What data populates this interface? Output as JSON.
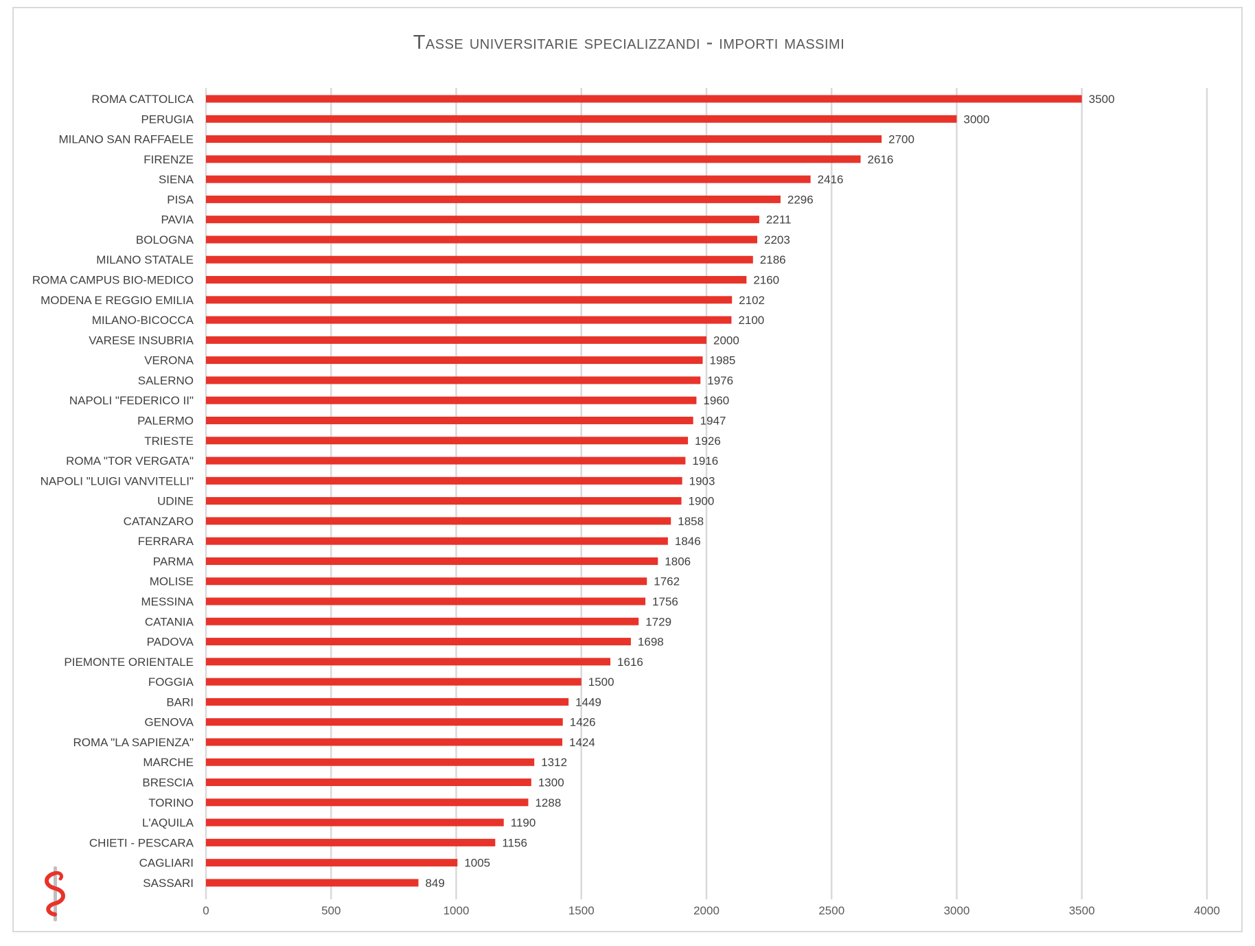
{
  "chart_data": {
    "type": "bar",
    "orientation": "horizontal",
    "title": "Tasse universitarie specializzandi - importi massimi",
    "xlabel": "",
    "ylabel": "",
    "xlim": [
      0,
      4000
    ],
    "x_ticks": [
      0,
      500,
      1000,
      1500,
      2000,
      2500,
      3000,
      3500,
      4000
    ],
    "grid": "vertical",
    "legend": "none",
    "bar_color": "#e8332a",
    "categories": [
      "ROMA CATTOLICA",
      "PERUGIA",
      "MILANO SAN RAFFAELE",
      "FIRENZE",
      "SIENA",
      "PISA",
      "PAVIA",
      "BOLOGNA",
      "MILANO STATALE",
      "ROMA CAMPUS BIO-MEDICO",
      "MODENA E REGGIO EMILIA",
      "MILANO-BICOCCA",
      "VARESE INSUBRIA",
      "VERONA",
      "SALERNO",
      "NAPOLI \"FEDERICO II\"",
      "PALERMO",
      "TRIESTE",
      "ROMA \"TOR VERGATA\"",
      "NAPOLI \"LUIGI VANVITELLI\"",
      "UDINE",
      "CATANZARO",
      "FERRARA",
      "PARMA",
      "MOLISE",
      "MESSINA",
      "CATANIA",
      "PADOVA",
      "PIEMONTE ORIENTALE",
      "FOGGIA",
      "BARI",
      "GENOVA",
      "ROMA \"LA SAPIENZA\"",
      "MARCHE",
      "BRESCIA",
      "TORINO",
      "L'AQUILA",
      "CHIETI - PESCARA",
      "CAGLIARI",
      "SASSARI"
    ],
    "values": [
      3500,
      3000,
      2700,
      2616,
      2416,
      2296,
      2211,
      2203,
      2186,
      2160,
      2102,
      2100,
      2000,
      1985,
      1976,
      1960,
      1947,
      1926,
      1916,
      1903,
      1900,
      1858,
      1846,
      1806,
      1762,
      1756,
      1729,
      1698,
      1616,
      1500,
      1449,
      1426,
      1424,
      1312,
      1300,
      1288,
      1190,
      1156,
      1005,
      849
    ]
  },
  "colors": {
    "bar": "#e8332a",
    "grid": "#d9d9d9",
    "text": "#404040",
    "logo_red": "#e8332a",
    "logo_gray": "#bfbfbf"
  },
  "logo": {
    "icon": "caduceus-logo-icon"
  }
}
